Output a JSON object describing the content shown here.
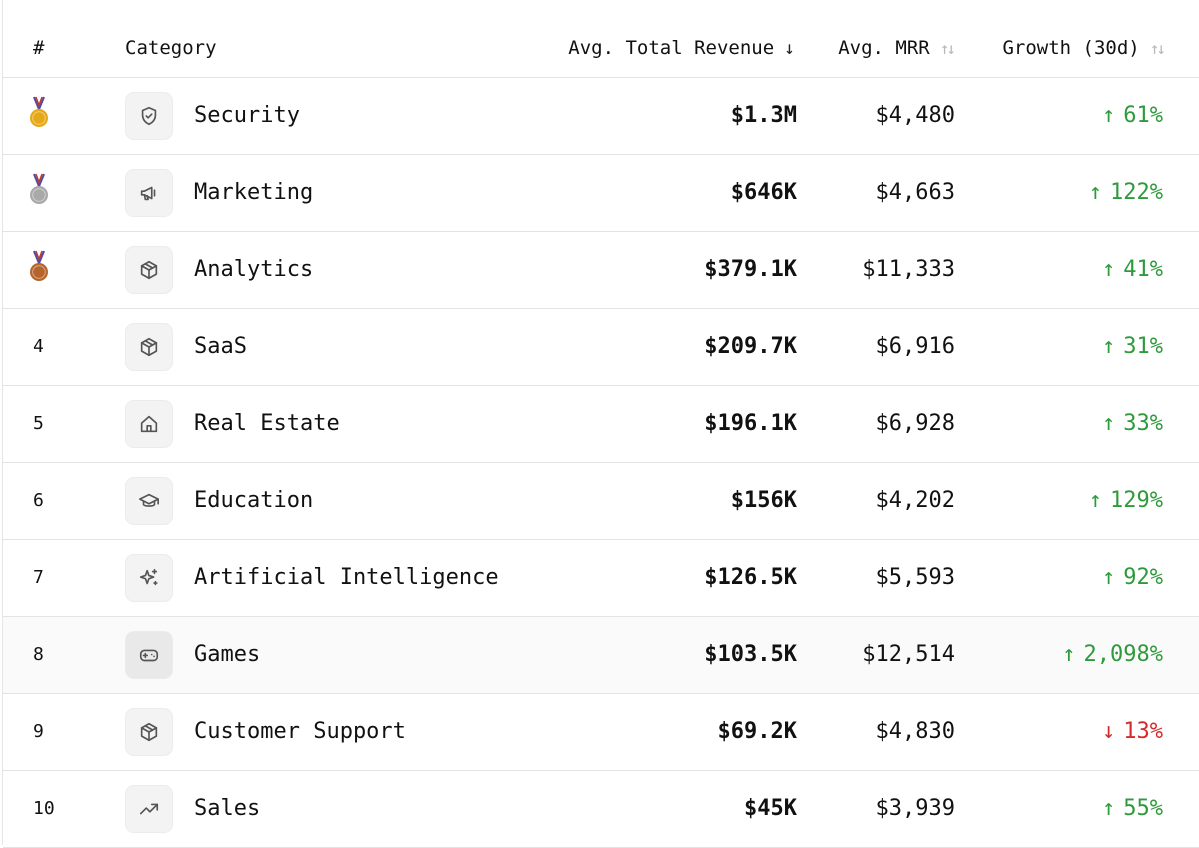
{
  "header": {
    "rank": "#",
    "category": "Category",
    "revenue": "Avg. Total Revenue",
    "revenue_sort": "↓",
    "mrr": "Avg. MRR",
    "mrr_sort": "↑↓",
    "growth": "Growth (30d)",
    "growth_sort": "↑↓"
  },
  "colors": {
    "positive": "#2e9a3c",
    "negative": "#d62a2a",
    "gold": "#e6a817",
    "silver": "#a9a9a9",
    "bronze": "#b5652b"
  },
  "rows": [
    {
      "rank": "1",
      "medal": "gold-medal",
      "icon": "shield-icon",
      "category": "Security",
      "revenue": "$1.3M",
      "mrr": "$4,480",
      "growth_arrow": "↑",
      "growth": "61%",
      "trend": "up"
    },
    {
      "rank": "2",
      "medal": "silver-medal",
      "icon": "megaphone-icon",
      "category": "Marketing",
      "revenue": "$646K",
      "mrr": "$4,663",
      "growth_arrow": "↑",
      "growth": "122%",
      "trend": "up"
    },
    {
      "rank": "3",
      "medal": "bronze-medal",
      "icon": "box-icon",
      "category": "Analytics",
      "revenue": "$379.1K",
      "mrr": "$11,333",
      "growth_arrow": "↑",
      "growth": "41%",
      "trend": "up"
    },
    {
      "rank": "4",
      "icon": "box-icon",
      "category": "SaaS",
      "revenue": "$209.7K",
      "mrr": "$6,916",
      "growth_arrow": "↑",
      "growth": "31%",
      "trend": "up"
    },
    {
      "rank": "5",
      "icon": "home-icon",
      "category": "Real Estate",
      "revenue": "$196.1K",
      "mrr": "$6,928",
      "growth_arrow": "↑",
      "growth": "33%",
      "trend": "up"
    },
    {
      "rank": "6",
      "icon": "graduation-cap-icon",
      "category": "Education",
      "revenue": "$156K",
      "mrr": "$4,202",
      "growth_arrow": "↑",
      "growth": "129%",
      "trend": "up"
    },
    {
      "rank": "7",
      "icon": "sparkles-icon",
      "category": "Artificial Intelligence",
      "revenue": "$126.5K",
      "mrr": "$5,593",
      "growth_arrow": "↑",
      "growth": "92%",
      "trend": "up"
    },
    {
      "rank": "8",
      "icon": "gamepad-icon",
      "category": "Games",
      "revenue": "$103.5K",
      "mrr": "$12,514",
      "growth_arrow": "↑",
      "growth": "2,098%",
      "trend": "up",
      "highlight": true
    },
    {
      "rank": "9",
      "icon": "box-icon",
      "category": "Customer Support",
      "revenue": "$69.2K",
      "mrr": "$4,830",
      "growth_arrow": "↓",
      "growth": "13%",
      "trend": "down"
    },
    {
      "rank": "10",
      "icon": "trending-up-icon",
      "category": "Sales",
      "revenue": "$45K",
      "mrr": "$3,939",
      "growth_arrow": "↑",
      "growth": "55%",
      "trend": "up"
    }
  ]
}
